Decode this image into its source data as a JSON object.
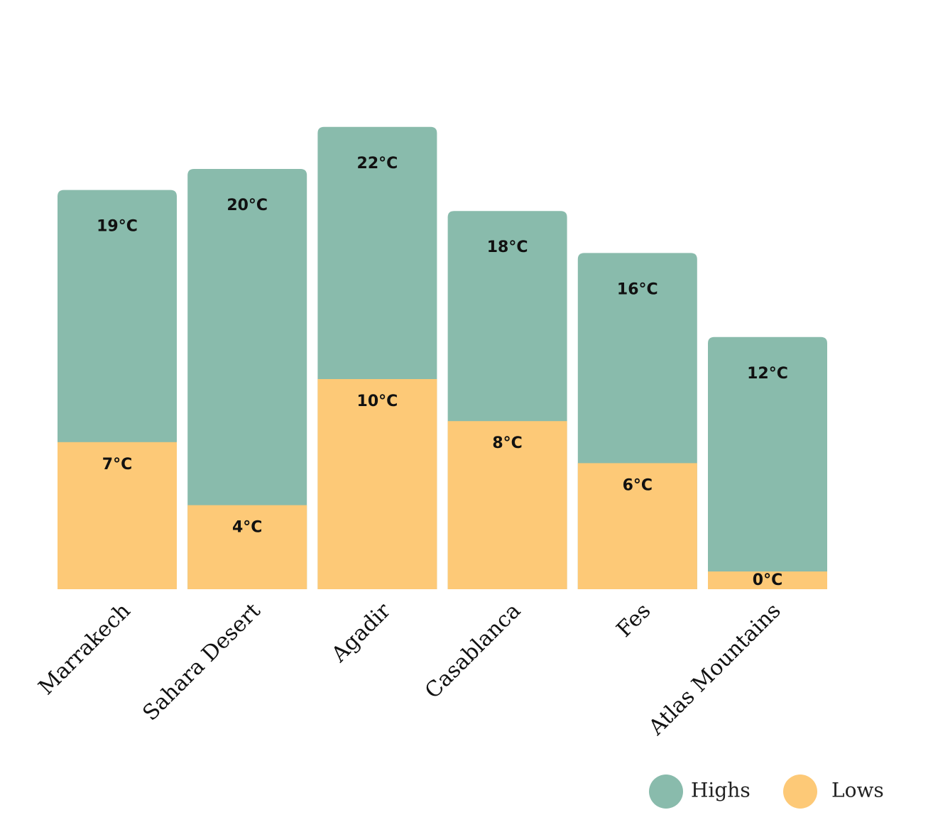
{
  "chart_data": {
    "type": "bar",
    "stacked_overlay": true,
    "categories": [
      "Marrakech",
      "Sahara Desert",
      "Agadir",
      "Casablanca",
      "Fes",
      "Atlas Mountains"
    ],
    "series": [
      {
        "name": "Highs",
        "color": "#89bbac",
        "values": [
          19,
          20,
          22,
          18,
          16,
          12
        ],
        "labels": [
          "19°C",
          "20°C",
          "22°C",
          "18°C",
          "16°C",
          "12°C"
        ]
      },
      {
        "name": "Lows",
        "color": "#fdc977",
        "values": [
          7,
          4,
          10,
          8,
          6,
          0
        ],
        "labels": [
          "7°C",
          "4°C",
          "10°C",
          "8°C",
          "6°C",
          "0°C"
        ]
      }
    ],
    "ylim": [
      0,
      22
    ],
    "grid": false,
    "legend_position": "bottom-right",
    "title": "",
    "xlabel": "",
    "ylabel": ""
  }
}
